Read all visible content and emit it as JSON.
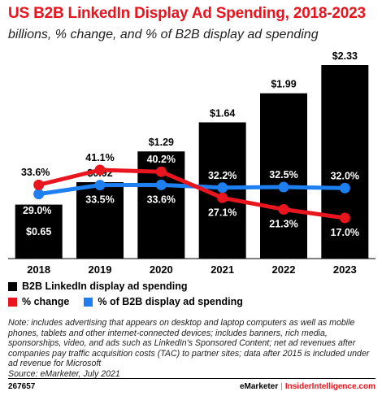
{
  "header": {
    "title": "US B2B LinkedIn Display Ad Spending, 2018-2023",
    "subtitle": "billions, % change, and % of B2B display ad spending"
  },
  "chart_data": {
    "type": "bar",
    "categories": [
      "2018",
      "2019",
      "2020",
      "2021",
      "2022",
      "2023"
    ],
    "series": [
      {
        "name": "B2B LinkedIn display ad spending",
        "kind": "bar",
        "color": "#000000",
        "values": [
          0.65,
          0.92,
          1.29,
          1.64,
          1.99,
          2.33
        ],
        "labels": [
          "$0.65",
          "$0.92",
          "$1.29",
          "$1.64",
          "$1.99",
          "$2.33"
        ]
      },
      {
        "name": "% change",
        "kind": "line",
        "color": "#e8141e",
        "values": [
          33.6,
          41.1,
          40.2,
          27.1,
          21.3,
          17.0
        ],
        "labels": [
          "33.6%",
          "41.1%",
          "40.2%",
          "27.1%",
          "21.3%",
          "17.0%"
        ]
      },
      {
        "name": "% of B2B display ad spending",
        "kind": "line",
        "color": "#1e7ff0",
        "values": [
          29.0,
          33.5,
          33.6,
          32.2,
          32.5,
          32.0
        ],
        "labels": [
          "29.0%",
          "33.5%",
          "33.6%",
          "32.2%",
          "32.5%",
          "32.0%"
        ]
      }
    ],
    "ylim": [
      0,
      2.33
    ],
    "grid": false,
    "legend_position": "bottom-left"
  },
  "note": "Note: includes advertising that appears on desktop and laptop computers as well as mobile phones, tablets and other internet-connected devices; includes banners, rich media, sponsorships, video, and ads such as LinkedIn's Sponsored Content; net ad revenues after companies pay traffic acquisition costs (TAC) to partner sites; data after 2015 is included under ad revenue for Microsoft",
  "source": "Source: eMarketer, July 2021",
  "footer": {
    "id": "267657",
    "brand": "eMarketer",
    "separator": "|",
    "site": "InsiderIntelligence.com"
  }
}
